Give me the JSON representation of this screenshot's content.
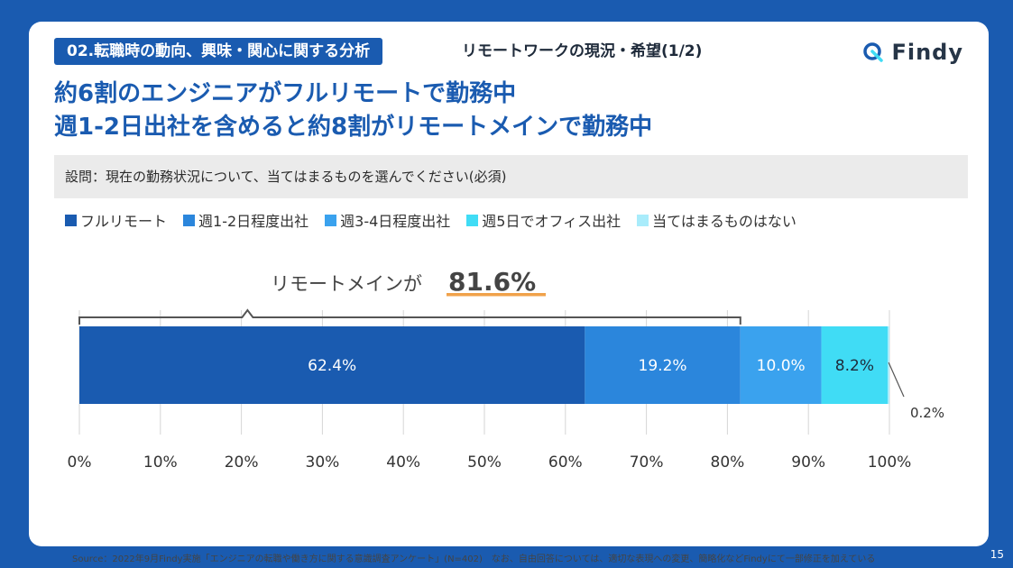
{
  "header": {
    "section_tag": "02.転職時の動向、興味・関心に関する分析",
    "section_sub": "リモートワークの現況・希望(1/2)",
    "brand": "Findy"
  },
  "headline": {
    "line1": "約6割のエンジニアがフルリモートで勤務中",
    "line2": "週1-2日出社を含めると約8割がリモートメインで勤務中"
  },
  "question": "設問：現在の勤務状況について、当てはまるものを選んでください(必須)",
  "colors": {
    "brand": "#1a5bb0",
    "series": [
      "#1a5bb0",
      "#2b86dc",
      "#3aa2ee",
      "#40dcf5",
      "#a9ecfb"
    ],
    "highlight_underline": "#f0a24a",
    "bracket": "#555555"
  },
  "chart_data": {
    "type": "bar",
    "orientation": "horizontal-stacked",
    "categories": [
      "フルリモート",
      "週1-2日程度出社",
      "週3-4日程度出社",
      "週5日でオフィス出社",
      "当てはまるものはない"
    ],
    "values": [
      62.4,
      19.2,
      10.0,
      8.2,
      0.2
    ],
    "value_labels": [
      "62.4%",
      "19.2%",
      "10.0%",
      "8.2%",
      "0.2%"
    ],
    "xlim": [
      0,
      100
    ],
    "ticks": [
      "0%",
      "10%",
      "20%",
      "30%",
      "40%",
      "50%",
      "60%",
      "70%",
      "80%",
      "90%",
      "100%"
    ],
    "grid": true,
    "legend_position": "top-left",
    "annotation": {
      "text": "リモートメインが",
      "value": "81.6%",
      "range": [
        0,
        81.6
      ]
    }
  },
  "footer": {
    "source": "Source：2022年9月Findy実施「エンジニアの転職や働き方に関する意識調査アンケート」(N=402)　なお、自由回答については、適切な表現への変更、簡略化などFindyにて一部修正を加えている"
  },
  "page_number": "15"
}
